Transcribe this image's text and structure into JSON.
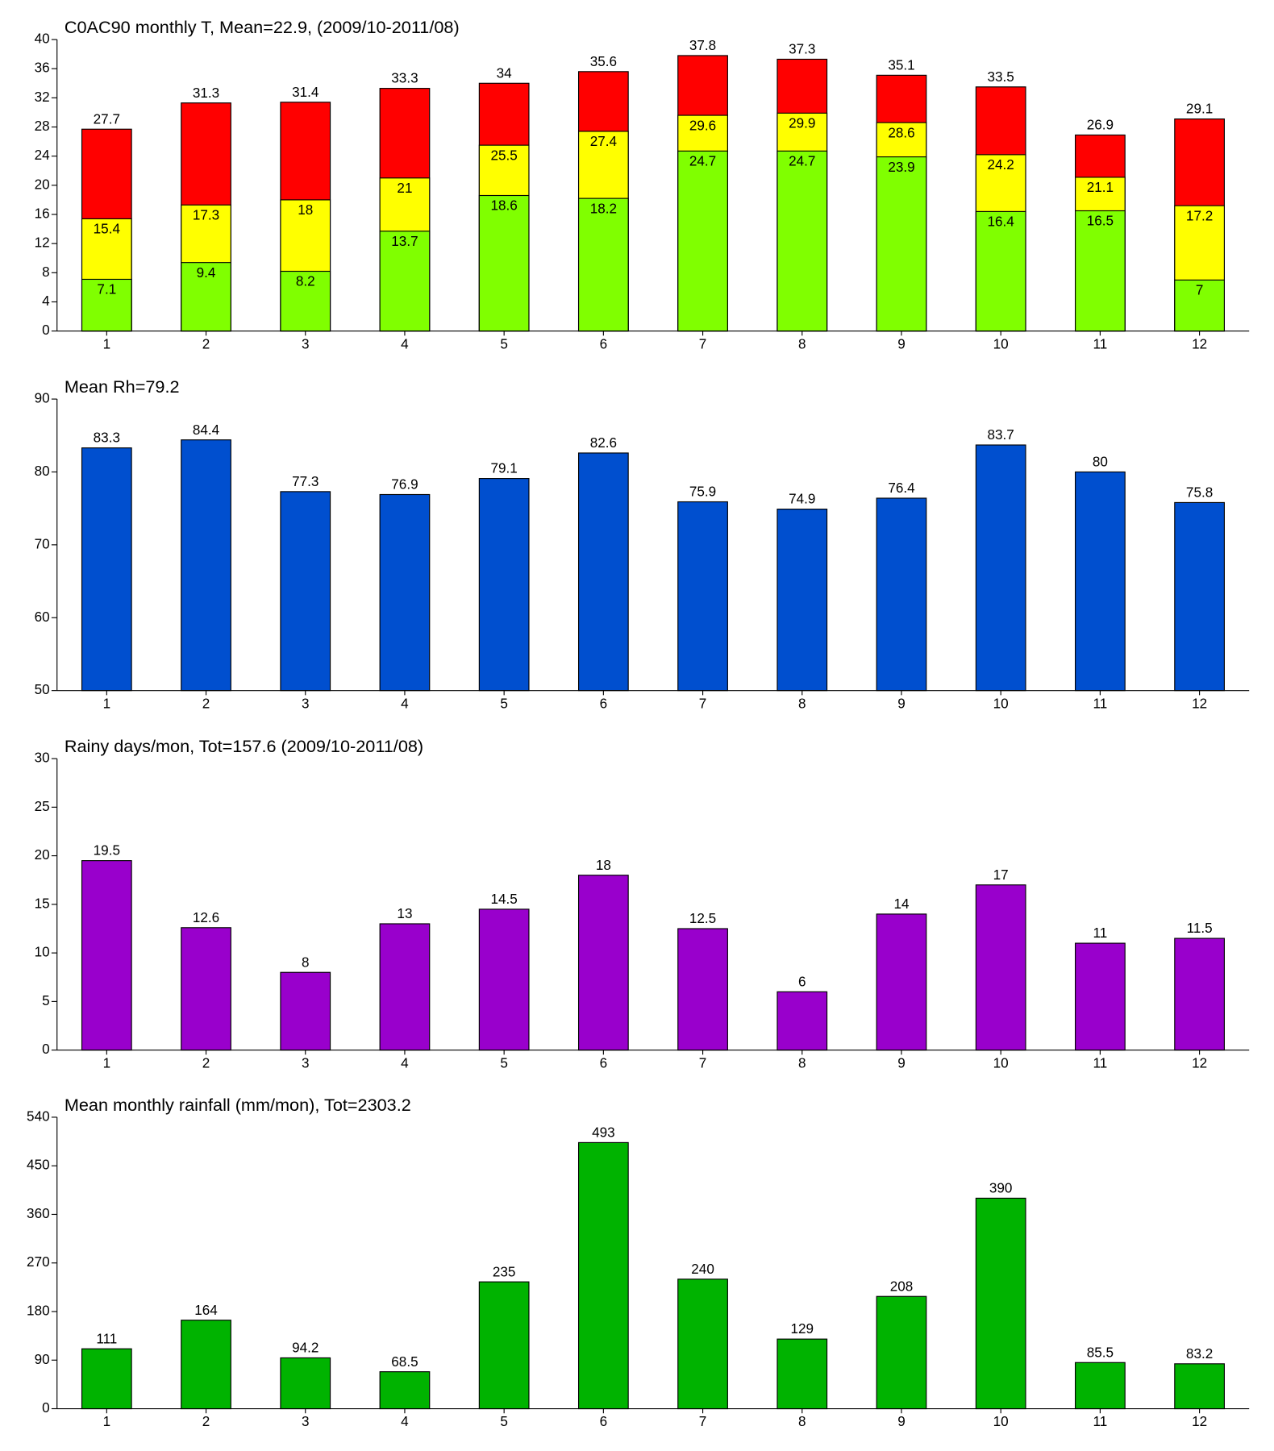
{
  "chart_data": [
    {
      "type": "bar",
      "title": "C0AC90 monthly T, Mean=22.9, (2009/10-2011/08)",
      "categories": [
        "1",
        "2",
        "3",
        "4",
        "5",
        "6",
        "7",
        "8",
        "9",
        "10",
        "11",
        "12"
      ],
      "series": [
        {
          "color": "#ff0000",
          "values": [
            27.7,
            31.3,
            31.4,
            33.3,
            34,
            35.6,
            37.8,
            37.3,
            35.1,
            33.5,
            26.9,
            29.1
          ]
        },
        {
          "color": "#ffff00",
          "values": [
            15.4,
            17.3,
            18,
            21,
            25.5,
            27.4,
            29.6,
            29.9,
            28.6,
            24.2,
            21.1,
            17.2
          ]
        },
        {
          "color": "#80ff00",
          "values": [
            7.1,
            9.4,
            8.2,
            13.7,
            18.6,
            18.2,
            24.7,
            24.7,
            23.9,
            16.4,
            16.5,
            7
          ]
        }
      ],
      "ylim": [
        0,
        40
      ],
      "yticks": [
        0,
        4,
        8,
        12,
        16,
        20,
        24,
        28,
        32,
        36,
        40
      ]
    },
    {
      "type": "bar",
      "title": "Mean Rh=79.2",
      "categories": [
        "1",
        "2",
        "3",
        "4",
        "5",
        "6",
        "7",
        "8",
        "9",
        "10",
        "11",
        "12"
      ],
      "series": [
        {
          "color": "#004fcf",
          "values": [
            83.3,
            84.4,
            77.3,
            76.9,
            79.1,
            82.6,
            75.9,
            74.9,
            76.4,
            83.7,
            80,
            75.8
          ]
        }
      ],
      "ylim": [
        50,
        90
      ],
      "yticks": [
        50,
        60,
        70,
        80,
        90
      ]
    },
    {
      "type": "bar",
      "title": "Rainy days/mon, Tot=157.6 (2009/10-2011/08)",
      "categories": [
        "1",
        "2",
        "3",
        "4",
        "5",
        "6",
        "7",
        "8",
        "9",
        "10",
        "11",
        "12"
      ],
      "series": [
        {
          "color": "#9900cc",
          "values": [
            19.5,
            12.6,
            8,
            13,
            14.5,
            18,
            12.5,
            6,
            14,
            17,
            11,
            11.5
          ]
        }
      ],
      "ylim": [
        0,
        30
      ],
      "yticks": [
        0,
        5,
        10,
        15,
        20,
        25,
        30
      ]
    },
    {
      "type": "bar",
      "title": "Mean monthly rainfall (mm/mon), Tot=2303.2",
      "categories": [
        "1",
        "2",
        "3",
        "4",
        "5",
        "6",
        "7",
        "8",
        "9",
        "10",
        "11",
        "12"
      ],
      "series": [
        {
          "color": "#00b300",
          "values": [
            111,
            164,
            94.2,
            68.5,
            235,
            493,
            240,
            129,
            208,
            390,
            85.5,
            83.2
          ]
        }
      ],
      "ylim": [
        0,
        540
      ],
      "yticks": [
        0,
        90,
        180,
        270,
        360,
        450,
        540
      ]
    }
  ]
}
